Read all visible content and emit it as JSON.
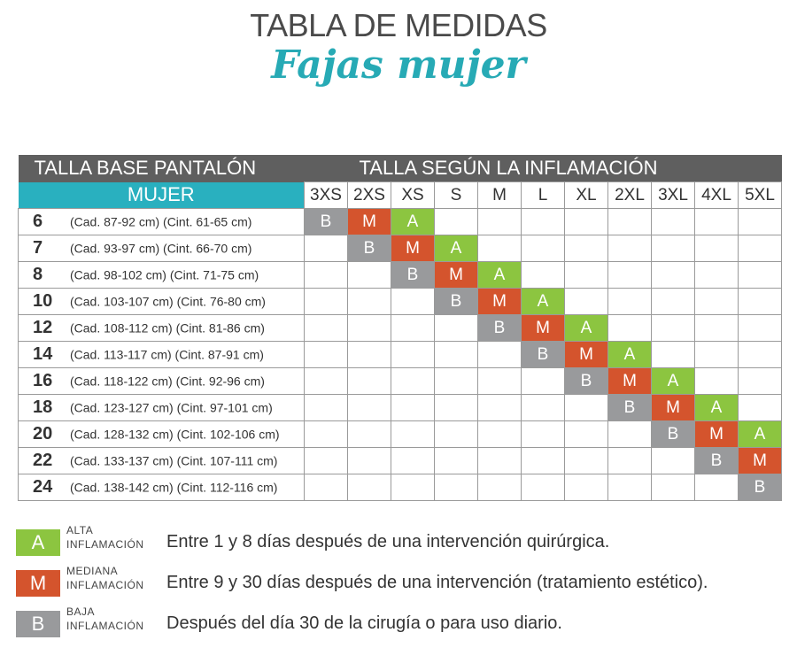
{
  "title": "TABLA DE MEDIDAS",
  "subtitle": "Fajas mujer",
  "table": {
    "left_header_line1": "TALLA BASE PANTALÓN",
    "left_header_line2": "MUJER",
    "right_header": "TALLA SEGÚN LA INFLAMACIÓN",
    "sizes": [
      "3XS",
      "2XS",
      "XS",
      "S",
      "M",
      "L",
      "XL",
      "2XL",
      "3XL",
      "4XL",
      "5XL"
    ],
    "rows": [
      {
        "num": "6",
        "desc": "(Cad. 87-92 cm) (Cint. 61-65 cm)",
        "cells": [
          "B",
          "M",
          "A",
          "",
          "",
          "",
          "",
          "",
          "",
          "",
          ""
        ]
      },
      {
        "num": "7",
        "desc": "(Cad. 93-97 cm) (Cint. 66-70 cm)",
        "cells": [
          "",
          "B",
          "M",
          "A",
          "",
          "",
          "",
          "",
          "",
          "",
          ""
        ]
      },
      {
        "num": "8",
        "desc": "(Cad. 98-102 cm) (Cint. 71-75 cm)",
        "cells": [
          "",
          "",
          "B",
          "M",
          "A",
          "",
          "",
          "",
          "",
          "",
          ""
        ]
      },
      {
        "num": "10",
        "desc": "(Cad. 103-107 cm) (Cint. 76-80 cm)",
        "cells": [
          "",
          "",
          "",
          "B",
          "M",
          "A",
          "",
          "",
          "",
          "",
          ""
        ]
      },
      {
        "num": "12",
        "desc": "(Cad. 108-112 cm) (Cint. 81-86 cm)",
        "cells": [
          "",
          "",
          "",
          "",
          "B",
          "M",
          "A",
          "",
          "",
          "",
          ""
        ]
      },
      {
        "num": "14",
        "desc": "(Cad. 113-117 cm) (Cint. 87-91 cm)",
        "cells": [
          "",
          "",
          "",
          "",
          "",
          "B",
          "M",
          "A",
          "",
          "",
          ""
        ]
      },
      {
        "num": "16",
        "desc": "(Cad. 118-122 cm) (Cint. 92-96 cm)",
        "cells": [
          "",
          "",
          "",
          "",
          "",
          "",
          "B",
          "M",
          "A",
          "",
          ""
        ]
      },
      {
        "num": "18",
        "desc": "(Cad. 123-127 cm) (Cint. 97-101 cm)",
        "cells": [
          "",
          "",
          "",
          "",
          "",
          "",
          "",
          "B",
          "M",
          "A",
          ""
        ]
      },
      {
        "num": "20",
        "desc": "(Cad. 128-132 cm) (Cint. 102-106 cm)",
        "cells": [
          "",
          "",
          "",
          "",
          "",
          "",
          "",
          "",
          "B",
          "M",
          "A"
        ]
      },
      {
        "num": "22",
        "desc": "(Cad. 133-137 cm) (Cint. 107-111 cm)",
        "cells": [
          "",
          "",
          "",
          "",
          "",
          "",
          "",
          "",
          "",
          "B",
          "M"
        ]
      },
      {
        "num": "24",
        "desc": "(Cad. 138-142 cm) (Cint. 112-116 cm)",
        "cells": [
          "",
          "",
          "",
          "",
          "",
          "",
          "",
          "",
          "",
          "",
          "B"
        ]
      }
    ]
  },
  "legend": [
    {
      "letter": "A",
      "line1": "ALTA",
      "line2": "INFLAMACIÓN",
      "text": "Entre 1 y 8 días después de una intervención quirúrgica.",
      "color": "#8cc540"
    },
    {
      "letter": "M",
      "line1": "MEDIANA",
      "line2": "INFLAMACIÓN",
      "text": "Entre 9 y 30 días después de una intervención (tratamiento estético).",
      "color": "#d4542d"
    },
    {
      "letter": "B",
      "line1": "BAJA",
      "line2": "INFLAMACIÓN",
      "text": "Después del día 30 de la cirugía o para uso diario.",
      "color": "#999a9c"
    }
  ],
  "colors": {
    "A": "#8cc540",
    "M": "#d4542d",
    "B": "#999a9c",
    "teal": "#29b0bf",
    "header_dark": "#5f5f5f"
  }
}
